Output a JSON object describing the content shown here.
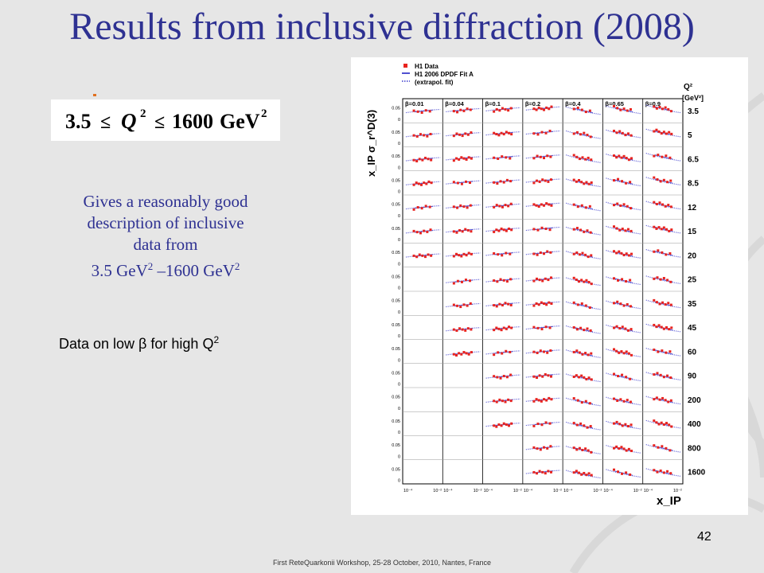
{
  "slide": {
    "title": "Results from inclusive diffraction (2008)",
    "formula": {
      "lhs": "3.5",
      "leq": "≤",
      "variable": "Q",
      "exp": "2",
      "rhs": "1600",
      "unit": "GeV",
      "unit_exp": "2"
    },
    "description": {
      "line1": "Gives a reasonably good",
      "line2": "description of   inclusive",
      "line3": "data from",
      "range_low": "3.5 GeV",
      "dash": " –",
      "range_high": "1600 GeV",
      "exp": "2"
    },
    "note": {
      "text": "Data on low β for high Q",
      "exp": "2"
    },
    "page_number": "42",
    "footer": "First ReteQuarkonii Workshop, 25-28 October, 2010, Nantes, France"
  },
  "figure": {
    "legend": [
      "H1 Data",
      "H1 2006 DPDF Fit A",
      "(extrapol. fit)"
    ],
    "y_axis_label": "x_IP σ_r^D(3)",
    "x_axis_label": "x_IP",
    "q2_header": "Q²",
    "q2_units": "[GeV²]",
    "beta_labels": [
      "β=0.01",
      "β=0.04",
      "β=0.1",
      "β=0.2",
      "β=0.4",
      "β=0.65",
      "β=0.9"
    ],
    "q2_values": [
      "3.5",
      "5",
      "6.5",
      "8.5",
      "12",
      "15",
      "20",
      "25",
      "35",
      "45",
      "60",
      "90",
      "200",
      "400",
      "800",
      "1600"
    ],
    "row_ticks": [
      "0.05",
      "0"
    ],
    "x_ticks": [
      "10⁻⁴",
      "10⁻²"
    ],
    "colors": {
      "data": "#e8231e",
      "fit": "#5050d0",
      "extrapol": "#6a6ad8",
      "title": "#2e3192"
    }
  }
}
